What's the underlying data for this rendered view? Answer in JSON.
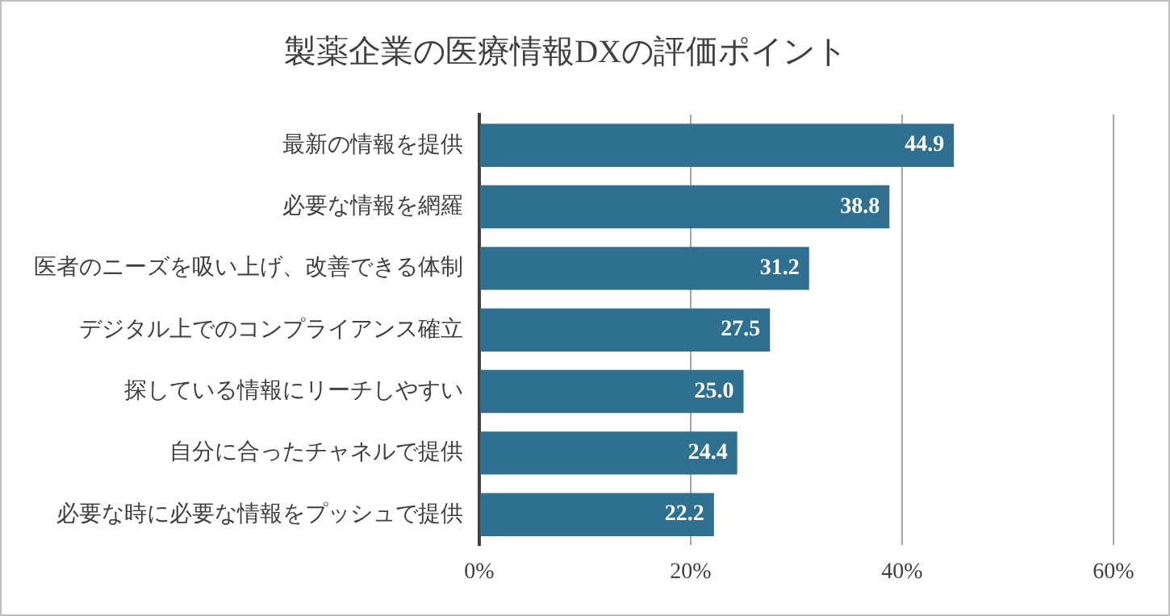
{
  "chart_data": {
    "type": "bar",
    "orientation": "horizontal",
    "title": "製薬企業の医療情報DXの評価ポイント",
    "categories": [
      "最新の情報を提供",
      "必要な情報を網羅",
      "医者のニーズを吸い上げ、改善できる体制",
      "デジタル上でのコンプライアンス確立",
      "探している情報にリーチしやすい",
      "自分に合ったチャネルで提供",
      "必要な時に必要な情報をプッシュで提供"
    ],
    "values": [
      44.9,
      38.8,
      31.2,
      27.5,
      25.0,
      24.4,
      22.2
    ],
    "value_labels": [
      "44.9",
      "38.8",
      "31.2",
      "27.5",
      "25.0",
      "24.4",
      "22.2"
    ],
    "color": "#2f6f8f",
    "xlim": [
      0,
      60
    ],
    "xticks": [
      {
        "value": 0,
        "label": "0%"
      },
      {
        "value": 20,
        "label": "20%"
      },
      {
        "value": 40,
        "label": "40%"
      },
      {
        "value": 60,
        "label": "60%"
      }
    ],
    "grid": "x",
    "legend": false
  }
}
